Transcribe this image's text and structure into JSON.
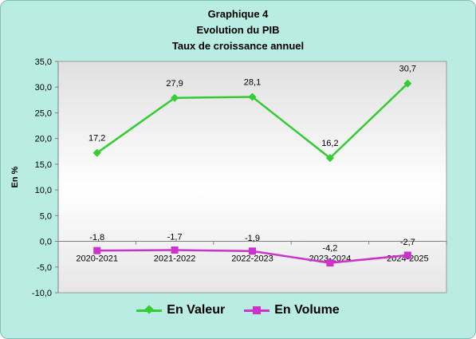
{
  "chart_data": {
    "type": "line",
    "title_lines": [
      "Graphique 4",
      "Evolution du PIB",
      "Taux de croissance annuel"
    ],
    "ylabel": "En %",
    "xlabel": "",
    "categories": [
      "2020-2021",
      "2021-2022",
      "2022-2023",
      "2023-2024",
      "2024-2025"
    ],
    "ylim": [
      -10,
      35
    ],
    "yticks": [
      35,
      30,
      25,
      20,
      15,
      10,
      5,
      0,
      -5,
      -10
    ],
    "ytick_labels": [
      "35,0",
      "30,0",
      "25,0",
      "20,0",
      "15,0",
      "10,0",
      "5,0",
      "0,0",
      "-5,0",
      "-10,0"
    ],
    "legend_position": "bottom",
    "series": [
      {
        "name": "En Valeur",
        "values": [
          17.2,
          27.9,
          28.1,
          16.2,
          30.7
        ],
        "labels": [
          "17,2",
          "27,9",
          "28,1",
          "16,2",
          "30,7"
        ],
        "color": "#33cc33",
        "marker": "diamond"
      },
      {
        "name": "En Volume",
        "values": [
          -1.8,
          -1.7,
          -1.9,
          -4.2,
          -2.7
        ],
        "labels": [
          "-1,8",
          "-1,7",
          "-1,9",
          "-4,2",
          "-2,7"
        ],
        "color": "#cc33cc",
        "marker": "square"
      }
    ]
  }
}
